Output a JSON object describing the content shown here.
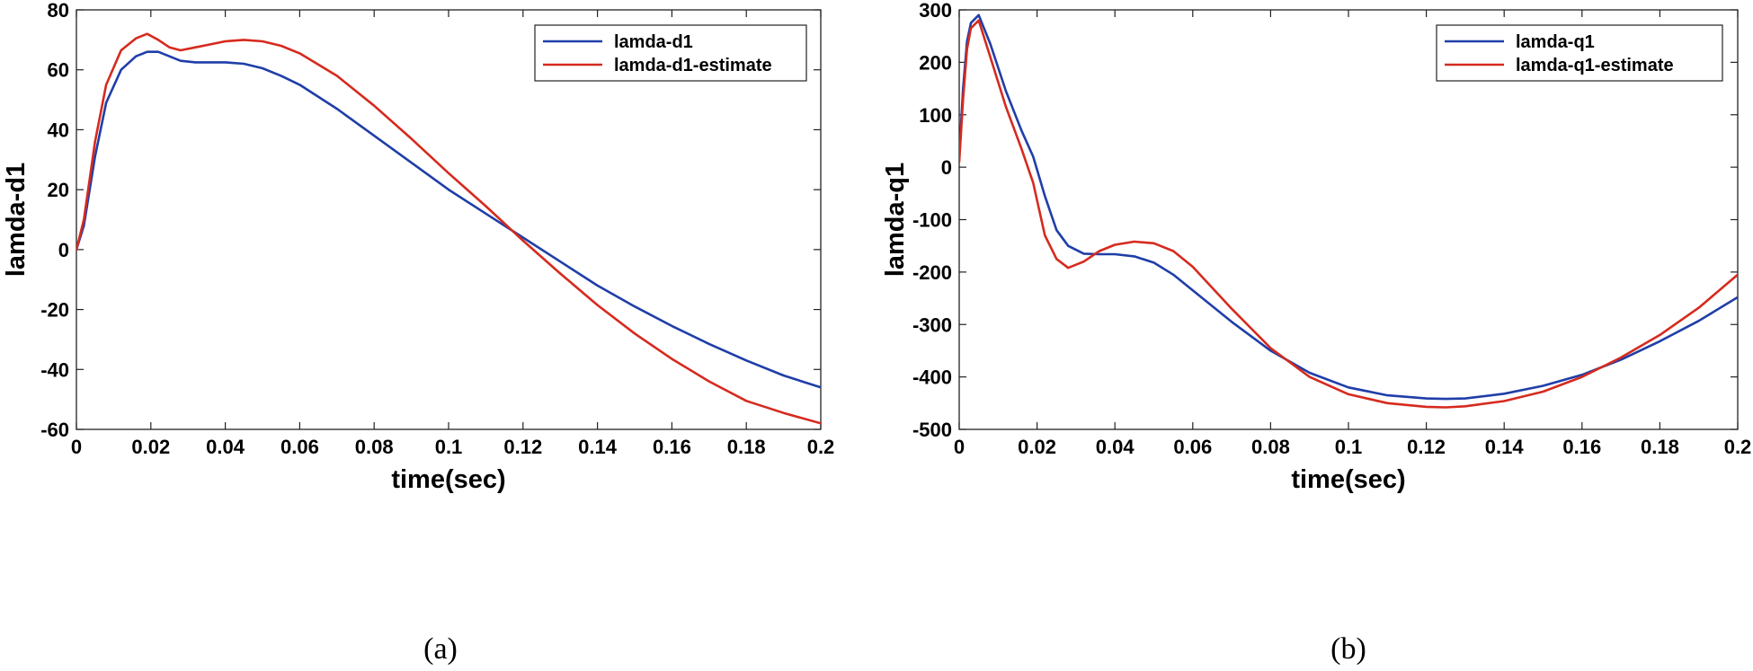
{
  "chart_data": [
    {
      "type": "line",
      "panel_label": "(a)",
      "xlabel": "time(sec)",
      "ylabel": "lamda-d1",
      "xlim": [
        0,
        0.2
      ],
      "ylim": [
        -60,
        80
      ],
      "xticks": [
        0,
        0.02,
        0.04,
        0.06,
        0.08,
        0.1,
        0.12,
        0.14,
        0.16,
        0.18,
        0.2
      ],
      "xtick_labels": [
        "0",
        "0.02",
        "0.04",
        "0.06",
        "0.08",
        "0.1",
        "0.12",
        "0.14",
        "0.16",
        "0.18",
        "0.2"
      ],
      "yticks": [
        -60,
        -40,
        -20,
        0,
        20,
        40,
        60,
        80
      ],
      "ytick_labels": [
        "-60",
        "-40",
        "-20",
        "0",
        "20",
        "40",
        "60",
        "80"
      ],
      "legend": "top-right",
      "grid": false,
      "series": [
        {
          "name": "lamda-d1",
          "color": "#1f3ea8",
          "x": [
            0,
            0.002,
            0.005,
            0.008,
            0.012,
            0.016,
            0.019,
            0.022,
            0.025,
            0.028,
            0.032,
            0.036,
            0.04,
            0.045,
            0.05,
            0.055,
            0.06,
            0.07,
            0.08,
            0.09,
            0.1,
            0.11,
            0.12,
            0.13,
            0.14,
            0.15,
            0.16,
            0.17,
            0.18,
            0.19,
            0.2
          ],
          "y": [
            0,
            8,
            31,
            49,
            60,
            64.5,
            66,
            66,
            64.5,
            63,
            62.5,
            62.5,
            62.5,
            62,
            60.5,
            58,
            55,
            47,
            38,
            29,
            20,
            12,
            4,
            -4,
            -12,
            -19,
            -25.5,
            -31.5,
            -37,
            -42,
            -46
          ]
        },
        {
          "name": "lamda-d1-estimate",
          "color": "#d62a1e",
          "x": [
            0,
            0.002,
            0.005,
            0.008,
            0.012,
            0.016,
            0.019,
            0.022,
            0.025,
            0.028,
            0.032,
            0.036,
            0.04,
            0.045,
            0.05,
            0.055,
            0.06,
            0.07,
            0.08,
            0.09,
            0.1,
            0.11,
            0.12,
            0.13,
            0.14,
            0.15,
            0.16,
            0.17,
            0.18,
            0.19,
            0.2
          ],
          "y": [
            0,
            10,
            36,
            55,
            66.5,
            70.5,
            72,
            70,
            67.5,
            66.5,
            67.5,
            68.5,
            69.5,
            70,
            69.5,
            68,
            65.5,
            58,
            48,
            37,
            25.5,
            14.5,
            3,
            -8,
            -18.5,
            -28,
            -36.5,
            -44,
            -50.5,
            -54.5,
            -58
          ]
        }
      ]
    },
    {
      "type": "line",
      "panel_label": "(b)",
      "xlabel": "time(sec)",
      "ylabel": "lamda-q1",
      "xlim": [
        0,
        0.2
      ],
      "ylim": [
        -500,
        300
      ],
      "xticks": [
        0,
        0.02,
        0.04,
        0.06,
        0.08,
        0.1,
        0.12,
        0.14,
        0.16,
        0.18,
        0.2
      ],
      "xtick_labels": [
        "0",
        "0.02",
        "0.04",
        "0.06",
        "0.08",
        "0.1",
        "0.12",
        "0.14",
        "0.16",
        "0.18",
        "0.2"
      ],
      "yticks": [
        -500,
        -400,
        -300,
        -200,
        -100,
        0,
        100,
        200,
        300
      ],
      "ytick_labels": [
        "-500",
        "-400",
        "-300",
        "-200",
        "-100",
        "0",
        "100",
        "200",
        "300"
      ],
      "legend": "top-right",
      "grid": false,
      "series": [
        {
          "name": "lamda-q1",
          "color": "#1f3ea8",
          "x": [
            0,
            0.001,
            0.002,
            0.003,
            0.005,
            0.008,
            0.012,
            0.016,
            0.019,
            0.022,
            0.025,
            0.028,
            0.032,
            0.036,
            0.04,
            0.045,
            0.05,
            0.055,
            0.06,
            0.07,
            0.08,
            0.09,
            0.1,
            0.11,
            0.12,
            0.125,
            0.13,
            0.14,
            0.15,
            0.16,
            0.17,
            0.18,
            0.19,
            0.2
          ],
          "y": [
            20,
            150,
            240,
            275,
            290,
            235,
            145,
            70,
            20,
            -55,
            -120,
            -150,
            -165,
            -166,
            -166,
            -170,
            -182,
            -205,
            -235,
            -295,
            -350,
            -392,
            -420,
            -435,
            -441,
            -442,
            -441,
            -432,
            -417,
            -396,
            -367,
            -332,
            -293,
            -248
          ]
        },
        {
          "name": "lamda-q1-estimate",
          "color": "#d62a1e",
          "x": [
            0,
            0.001,
            0.002,
            0.003,
            0.005,
            0.008,
            0.012,
            0.016,
            0.019,
            0.022,
            0.025,
            0.028,
            0.032,
            0.036,
            0.04,
            0.045,
            0.05,
            0.055,
            0.06,
            0.07,
            0.08,
            0.09,
            0.1,
            0.11,
            0.12,
            0.125,
            0.13,
            0.14,
            0.15,
            0.16,
            0.17,
            0.18,
            0.19,
            0.2
          ],
          "y": [
            10,
            130,
            225,
            265,
            280,
            210,
            115,
            35,
            -30,
            -130,
            -175,
            -192,
            -180,
            -160,
            -148,
            -142,
            -145,
            -160,
            -190,
            -270,
            -345,
            -400,
            -433,
            -450,
            -457,
            -458,
            -456,
            -446,
            -428,
            -400,
            -363,
            -320,
            -268,
            -205
          ]
        }
      ]
    }
  ]
}
